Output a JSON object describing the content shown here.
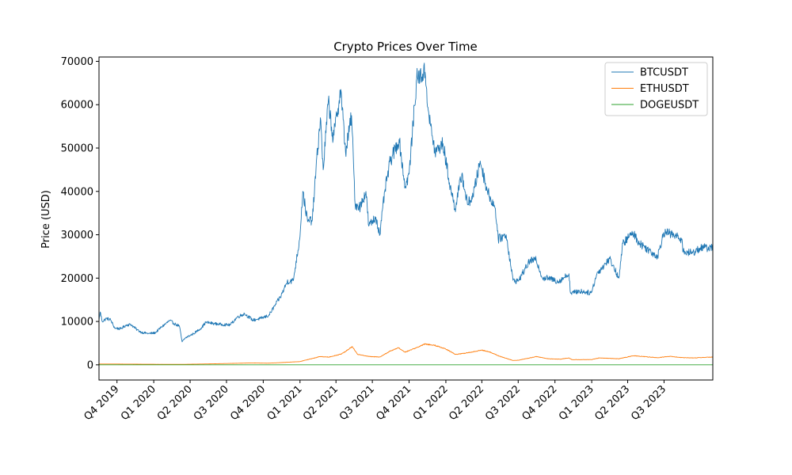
{
  "chart_data": {
    "type": "line",
    "title": "Crypto Prices Over Time",
    "xlabel": "",
    "ylabel": "Price (USD)",
    "xlim": [
      "2019-08-17",
      "2023-10-31"
    ],
    "ylim": [
      -3500,
      71000
    ],
    "grid": false,
    "legend_position": "top-right",
    "y_ticks": [
      0,
      10000,
      20000,
      30000,
      40000,
      50000,
      60000,
      70000
    ],
    "x_ticks": [
      {
        "label": "Q4 2019",
        "date": "2019-10-01"
      },
      {
        "label": "Q1 2020",
        "date": "2020-01-01"
      },
      {
        "label": "Q2 2020",
        "date": "2020-04-01"
      },
      {
        "label": "Q3 2020",
        "date": "2020-07-01"
      },
      {
        "label": "Q4 2020",
        "date": "2020-10-01"
      },
      {
        "label": "Q1 2021",
        "date": "2021-01-01"
      },
      {
        "label": "Q2 2021",
        "date": "2021-04-01"
      },
      {
        "label": "Q3 2021",
        "date": "2021-07-01"
      },
      {
        "label": "Q4 2021",
        "date": "2021-10-01"
      },
      {
        "label": "Q1 2022",
        "date": "2022-01-01"
      },
      {
        "label": "Q2 2022",
        "date": "2022-04-01"
      },
      {
        "label": "Q3 2022",
        "date": "2022-07-01"
      },
      {
        "label": "Q4 2022",
        "date": "2022-10-01"
      },
      {
        "label": "Q1 2023",
        "date": "2023-01-01"
      },
      {
        "label": "Q2 2023",
        "date": "2023-04-01"
      },
      {
        "label": "Q3 2023",
        "date": "2023-07-01"
      }
    ],
    "series": [
      {
        "name": "BTCUSDT",
        "color": "#1f77b4",
        "points": [
          [
            "2019-08-17",
            10300
          ],
          [
            "2019-08-20",
            12200
          ],
          [
            "2019-08-25",
            10000
          ],
          [
            "2019-09-05",
            10700
          ],
          [
            "2019-09-15",
            10400
          ],
          [
            "2019-09-25",
            8500
          ],
          [
            "2019-10-10",
            8300
          ],
          [
            "2019-10-25",
            9200
          ],
          [
            "2019-11-05",
            9300
          ],
          [
            "2019-11-20",
            8100
          ],
          [
            "2019-12-01",
            7500
          ],
          [
            "2019-12-20",
            7200
          ],
          [
            "2020-01-05",
            7400
          ],
          [
            "2020-01-20",
            8700
          ],
          [
            "2020-02-10",
            10200
          ],
          [
            "2020-02-25",
            9300
          ],
          [
            "2020-03-05",
            9000
          ],
          [
            "2020-03-12",
            5300
          ],
          [
            "2020-03-20",
            6200
          ],
          [
            "2020-04-10",
            7200
          ],
          [
            "2020-04-30",
            8600
          ],
          [
            "2020-05-10",
            9800
          ],
          [
            "2020-06-01",
            9500
          ],
          [
            "2020-06-20",
            9300
          ],
          [
            "2020-07-10",
            9200
          ],
          [
            "2020-07-28",
            11000
          ],
          [
            "2020-08-15",
            11800
          ],
          [
            "2020-09-05",
            10300
          ],
          [
            "2020-09-25",
            10700
          ],
          [
            "2020-10-15",
            11400
          ],
          [
            "2020-10-31",
            13800
          ],
          [
            "2020-11-15",
            16000
          ],
          [
            "2020-11-30",
            19200
          ],
          [
            "2020-12-15",
            19400
          ],
          [
            "2020-12-31",
            28900
          ],
          [
            "2021-01-08",
            40000
          ],
          [
            "2021-01-20",
            33000
          ],
          [
            "2021-02-01",
            33500
          ],
          [
            "2021-02-10",
            45000
          ],
          [
            "2021-02-21",
            57000
          ],
          [
            "2021-02-28",
            45000
          ],
          [
            "2021-03-13",
            61000
          ],
          [
            "2021-03-25",
            52000
          ],
          [
            "2021-04-13",
            63500
          ],
          [
            "2021-04-25",
            49000
          ],
          [
            "2021-05-10",
            57500
          ],
          [
            "2021-05-19",
            37000
          ],
          [
            "2021-06-01",
            36500
          ],
          [
            "2021-06-15",
            40000
          ],
          [
            "2021-06-22",
            32000
          ],
          [
            "2021-07-10",
            34000
          ],
          [
            "2021-07-20",
            30000
          ],
          [
            "2021-08-01",
            40000
          ],
          [
            "2021-08-15",
            47000
          ],
          [
            "2021-09-06",
            52000
          ],
          [
            "2021-09-21",
            41000
          ],
          [
            "2021-10-01",
            44000
          ],
          [
            "2021-10-20",
            66000
          ],
          [
            "2021-11-10",
            67500
          ],
          [
            "2021-11-20",
            57000
          ],
          [
            "2021-12-05",
            49000
          ],
          [
            "2021-12-25",
            51000
          ],
          [
            "2022-01-10",
            42000
          ],
          [
            "2022-01-24",
            36000
          ],
          [
            "2022-02-10",
            44000
          ],
          [
            "2022-02-24",
            37000
          ],
          [
            "2022-03-10",
            39000
          ],
          [
            "2022-03-28",
            47000
          ],
          [
            "2022-04-15",
            40000
          ],
          [
            "2022-05-05",
            36000
          ],
          [
            "2022-05-12",
            29000
          ],
          [
            "2022-06-01",
            30000
          ],
          [
            "2022-06-18",
            19500
          ],
          [
            "2022-07-01",
            19300
          ],
          [
            "2022-07-30",
            24000
          ],
          [
            "2022-08-15",
            24200
          ],
          [
            "2022-08-31",
            20000
          ],
          [
            "2022-09-15",
            20000
          ],
          [
            "2022-10-10",
            19200
          ],
          [
            "2022-11-05",
            21000
          ],
          [
            "2022-11-09",
            16500
          ],
          [
            "2022-12-01",
            17000
          ],
          [
            "2022-12-31",
            16600
          ],
          [
            "2023-01-14",
            21000
          ],
          [
            "2023-02-15",
            24500
          ],
          [
            "2023-03-10",
            20000
          ],
          [
            "2023-03-20",
            28000
          ],
          [
            "2023-04-14",
            30500
          ],
          [
            "2023-05-01",
            28000
          ],
          [
            "2023-06-15",
            25000
          ],
          [
            "2023-06-30",
            30500
          ],
          [
            "2023-07-15",
            30300
          ],
          [
            "2023-08-15",
            29000
          ],
          [
            "2023-08-18",
            26000
          ],
          [
            "2023-09-10",
            25800
          ],
          [
            "2023-09-30",
            27000
          ],
          [
            "2023-10-31",
            27000
          ]
        ]
      },
      {
        "name": "ETHUSDT",
        "color": "#ff7f0e",
        "points": [
          [
            "2019-08-17",
            190
          ],
          [
            "2019-10-01",
            180
          ],
          [
            "2020-01-01",
            130
          ],
          [
            "2020-03-12",
            110
          ],
          [
            "2020-06-01",
            240
          ],
          [
            "2020-09-01",
            430
          ],
          [
            "2020-10-15",
            380
          ],
          [
            "2020-12-31",
            740
          ],
          [
            "2021-02-20",
            1900
          ],
          [
            "2021-03-15",
            1800
          ],
          [
            "2021-04-15",
            2500
          ],
          [
            "2021-05-12",
            4200
          ],
          [
            "2021-05-25",
            2400
          ],
          [
            "2021-06-25",
            1900
          ],
          [
            "2021-07-20",
            1800
          ],
          [
            "2021-08-15",
            3200
          ],
          [
            "2021-09-05",
            3900
          ],
          [
            "2021-09-21",
            2900
          ],
          [
            "2021-10-15",
            3800
          ],
          [
            "2021-11-10",
            4800
          ],
          [
            "2021-12-01",
            4600
          ],
          [
            "2021-12-31",
            3700
          ],
          [
            "2022-01-25",
            2400
          ],
          [
            "2022-02-20",
            2700
          ],
          [
            "2022-04-01",
            3400
          ],
          [
            "2022-04-20",
            3000
          ],
          [
            "2022-05-15",
            2000
          ],
          [
            "2022-06-18",
            1000
          ],
          [
            "2022-07-01",
            1050
          ],
          [
            "2022-08-15",
            1900
          ],
          [
            "2022-09-15",
            1400
          ],
          [
            "2022-10-15",
            1300
          ],
          [
            "2022-11-05",
            1600
          ],
          [
            "2022-11-12",
            1200
          ],
          [
            "2022-12-31",
            1200
          ],
          [
            "2023-01-20",
            1600
          ],
          [
            "2023-03-10",
            1400
          ],
          [
            "2023-04-15",
            2100
          ],
          [
            "2023-06-15",
            1650
          ],
          [
            "2023-07-15",
            1950
          ],
          [
            "2023-08-18",
            1650
          ],
          [
            "2023-09-15",
            1600
          ],
          [
            "2023-10-31",
            1800
          ]
        ]
      },
      {
        "name": "DOGEUSDT",
        "color": "#2ca02c",
        "points": [
          [
            "2019-08-17",
            0.003
          ],
          [
            "2020-12-31",
            0.005
          ],
          [
            "2021-05-08",
            0.7
          ],
          [
            "2021-11-01",
            0.27
          ],
          [
            "2022-06-18",
            0.05
          ],
          [
            "2022-11-01",
            0.12
          ],
          [
            "2023-10-31",
            0.067
          ]
        ]
      }
    ]
  }
}
